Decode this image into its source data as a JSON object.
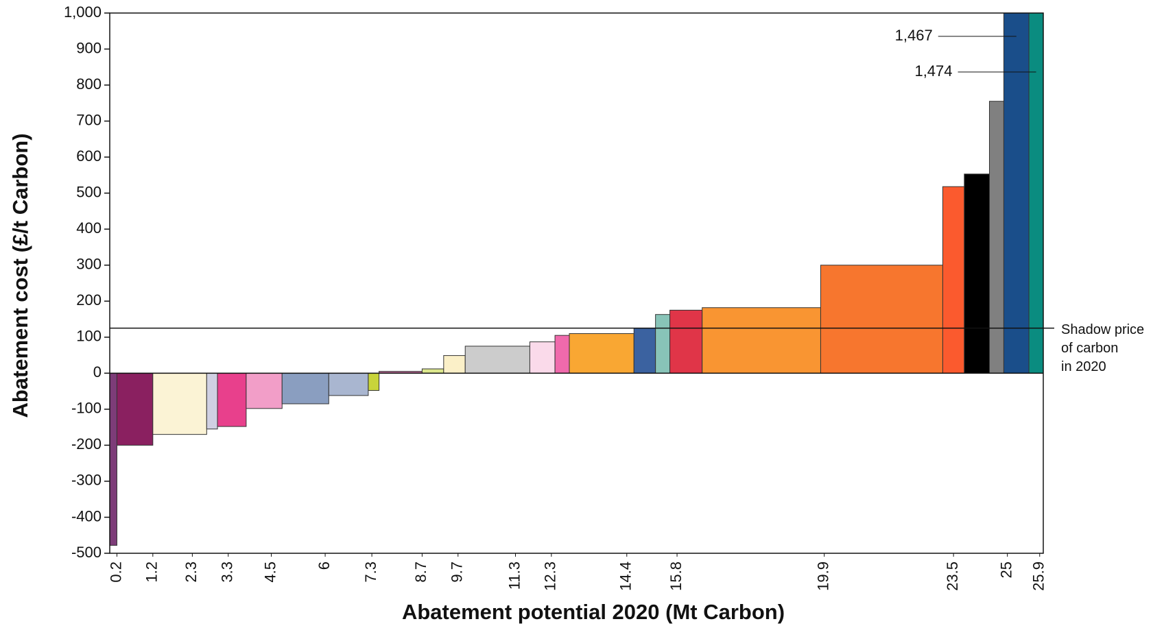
{
  "chart_data": {
    "type": "histogram",
    "ylabel": "Abatement cost (£/t Carbon)",
    "xlabel": "Abatement potential 2020 (Mt Carbon)",
    "bins": [
      0,
      0.2,
      1.2,
      2.7,
      3.0,
      3.8,
      4.8,
      6.1,
      7.2,
      7.5,
      8.7,
      9.3,
      9.9,
      11.7,
      12.4,
      12.8,
      14.6,
      15.2,
      15.6,
      16.5,
      19.8,
      23.2,
      23.8,
      24.5,
      24.9,
      25.6,
      26.0
    ],
    "values": [
      -478,
      -200,
      -170,
      -155,
      -148,
      -98,
      -85,
      -62,
      -48,
      5,
      12,
      49,
      75,
      87,
      105,
      110,
      125,
      163,
      175,
      182,
      300,
      518,
      553,
      755,
      1467,
      1474
    ],
    "value_labels": [
      null,
      null,
      null,
      null,
      null,
      null,
      null,
      null,
      null,
      null,
      null,
      null,
      null,
      null,
      null,
      null,
      null,
      null,
      null,
      null,
      null,
      null,
      null,
      null,
      "1,467",
      "1,474"
    ],
    "colors": [
      "#7d3c78",
      "#8a2060",
      "#fbf3d5",
      "#d0d0e2",
      "#e8408c",
      "#f29ec8",
      "#8a9ec0",
      "#a9b6d0",
      "#c8d43a",
      "#c06a9a",
      "#dde88e",
      "#fbf0c8",
      "#cccccc",
      "#fadaea",
      "#f06aac",
      "#f9a733",
      "#3b62a0",
      "#88c4b8",
      "#e03548",
      "#f99532",
      "#f7762e",
      "#fb5a2e",
      "#000000",
      "#808080",
      "#1a4e8a",
      "#0a8c80"
    ],
    "xlim": [
      0,
      26.0
    ],
    "xticks": [
      0.2,
      1.2,
      2.3,
      3.3,
      4.5,
      6,
      7.3,
      8.7,
      9.7,
      11.3,
      12.3,
      14.4,
      15.8,
      19.9,
      23.5,
      25,
      25.9
    ],
    "ylim": [
      -500,
      1000
    ],
    "yticks": [
      -500,
      -400,
      -300,
      -200,
      -100,
      0,
      100,
      200,
      300,
      400,
      500,
      600,
      700,
      800,
      900,
      {
        "value": 1000,
        "label": "1,000"
      }
    ],
    "annotations": [
      {
        "text": [
          "Shadow price",
          "of carbon",
          "in 2020"
        ],
        "y": 125
      }
    ]
  }
}
